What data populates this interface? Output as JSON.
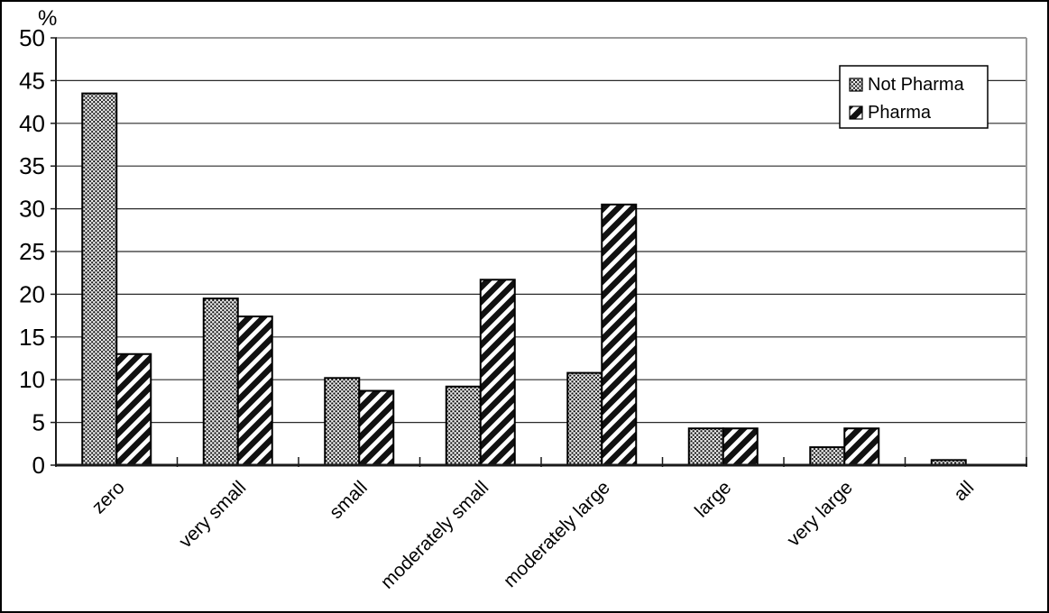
{
  "chart_data": {
    "type": "bar",
    "title": "",
    "y_unit": "%",
    "xlabel": "",
    "ylabel": "%",
    "ylim": [
      0,
      50
    ],
    "ytick_step": 5,
    "ytick_labels": [
      "0",
      "5",
      "10",
      "15",
      "20",
      "25",
      "30",
      "35",
      "40",
      "45",
      "50"
    ],
    "grid": true,
    "legend_position": "top-right",
    "categories": [
      "zero",
      "very small",
      "small",
      "moderately small",
      "moderately large",
      "large",
      "very large",
      "all"
    ],
    "series": [
      {
        "name": "Not Pharma",
        "pattern": "dots",
        "values": [
          43.5,
          19.5,
          10.2,
          9.2,
          10.8,
          4.3,
          2.1,
          0.6
        ]
      },
      {
        "name": "Pharma",
        "pattern": "stripes",
        "values": [
          13.0,
          17.4,
          8.7,
          21.7,
          30.5,
          4.3,
          4.3,
          0
        ]
      }
    ],
    "colors": {
      "bar_outline": "#000000",
      "pattern_ink": "#111111",
      "gridline": "#2a2a2a",
      "axis": "#1a1a1a",
      "plot_border_top_right": "#9a9a9a",
      "background": "#ffffff"
    }
  }
}
